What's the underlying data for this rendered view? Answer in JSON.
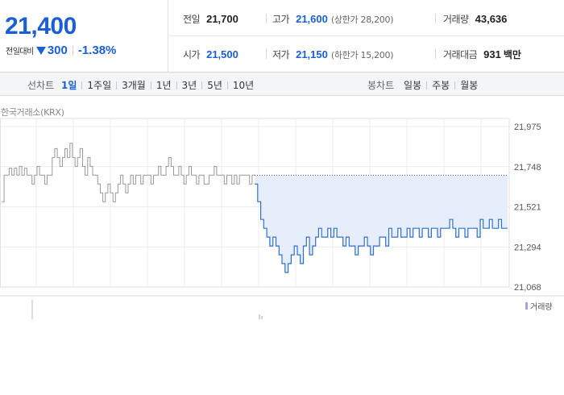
{
  "quote": {
    "current_price": "21,400",
    "change_label": "전일대비",
    "change_value": "300",
    "change_rate": "-1.38%",
    "direction_icon": "down-triangle-icon",
    "color_down": "#1a5fd4"
  },
  "stats": {
    "prev_close": {
      "label": "전일",
      "value": "21,700"
    },
    "open": {
      "label": "시가",
      "value": "21,500"
    },
    "high": {
      "label": "고가",
      "value": "21,600",
      "extra": "(상한가 28,200)"
    },
    "low": {
      "label": "저가",
      "value": "21,150",
      "extra": "(하한가 15,200)"
    },
    "volume": {
      "label": "거래량",
      "value": "43,636"
    },
    "trade_amount": {
      "label": "거래대금",
      "value": "931",
      "unit": "백만"
    }
  },
  "toolbar": {
    "line_chart_label": "선차트",
    "periods": [
      "1일",
      "1주일",
      "3개월",
      "1년",
      "3년",
      "5년",
      "10년"
    ],
    "active_period": "1일",
    "candle_chart_label": "봉차트",
    "candle_periods": [
      "일봉",
      "주봉",
      "월봉"
    ]
  },
  "chart": {
    "exchange_label": "한국거래소(KRX)",
    "volume_legend": "거래량",
    "prev_close_color": "#999999",
    "today_color": "#2f6fd0",
    "fill_color": "#e6eefb"
  },
  "chart_data": {
    "type": "line",
    "title": "",
    "y_ticks": [
      "21,975",
      "21,748",
      "21,521",
      "21,294",
      "21,068"
    ],
    "ylim": [
      21068,
      21975
    ],
    "reference_line": 21700,
    "grid": true,
    "legend": "bottom-right",
    "series": [
      {
        "values": [
          21550,
          21700,
          21700,
          21740,
          21700,
          21740,
          21700,
          21750,
          21700,
          21740,
          21700,
          21700,
          21650,
          21700,
          21750,
          21700,
          21700,
          21650,
          21700,
          21700,
          21800,
          21850,
          21800,
          21750,
          21800,
          21850,
          21800,
          21880,
          21800,
          21750,
          21800,
          21850,
          21750,
          21700,
          21800,
          21750,
          21700,
          21700,
          21650,
          21600,
          21550,
          21600,
          21650,
          21600,
          21550,
          21600,
          21650,
          21700,
          21650,
          21600,
          21650,
          21700,
          21650,
          21700,
          21700,
          21650,
          21700,
          21700,
          21700,
          21650,
          21700,
          21700,
          21750,
          21700,
          21700,
          21750,
          21800,
          21750,
          21700,
          21700,
          21750,
          21700,
          21650,
          21700,
          21750,
          21700,
          21700,
          21650,
          21700,
          21700,
          21650,
          21650,
          21700,
          21700,
          21750,
          21700,
          21700,
          21700,
          21650,
          21700,
          21700,
          21650,
          21700,
          21650,
          21700,
          21700,
          21700,
          21700,
          21650,
          21700
        ]
      },
      {
        "values": [
          21650,
          21550,
          21450,
          21400,
          21350,
          21300,
          21350,
          21300,
          21250,
          21200,
          21150,
          21200,
          21250,
          21300,
          21250,
          21200,
          21300,
          21350,
          21250,
          21300,
          21350,
          21400,
          21350,
          21350,
          21400,
          21350,
          21400,
          21350,
          21350,
          21300,
          21350,
          21300,
          21300,
          21250,
          21300,
          21300,
          21350,
          21300,
          21250,
          21300,
          21300,
          21350,
          21350,
          21300,
          21400,
          21350,
          21350,
          21400,
          21350,
          21350,
          21400,
          21350,
          21400,
          21400,
          21350,
          21400,
          21400,
          21350,
          21400,
          21400,
          21350,
          21400,
          21400,
          21400,
          21450,
          21400,
          21350,
          21400,
          21400,
          21350,
          21400,
          21400,
          21400,
          21350,
          21450,
          21400,
          21400,
          21450,
          21400,
          21400,
          21450,
          21400,
          21400
        ]
      }
    ]
  }
}
